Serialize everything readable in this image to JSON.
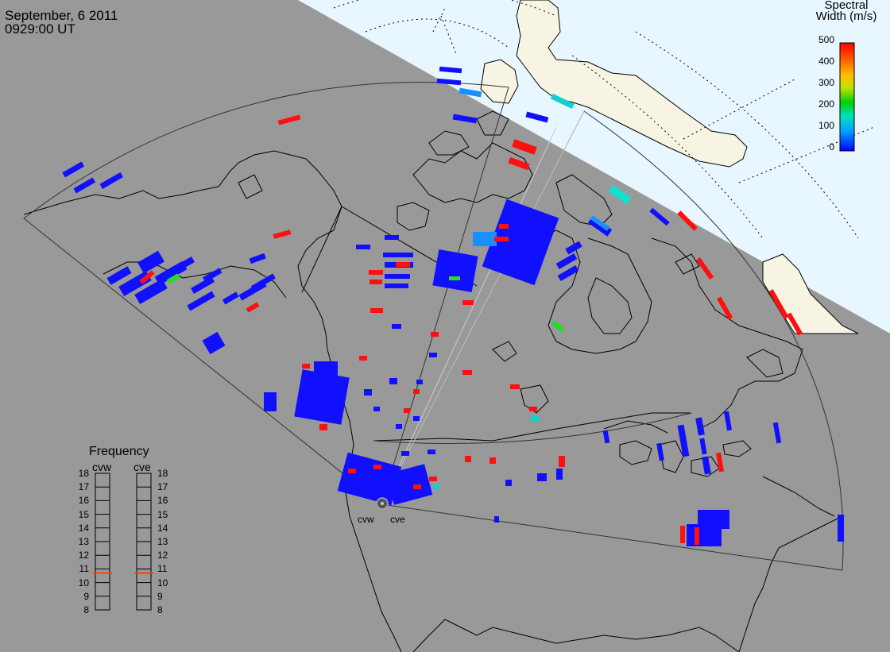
{
  "header": {
    "date": "September, 6 2011",
    "time": "0929:00 UT"
  },
  "colorbar": {
    "title_line1": "Spectral",
    "title_line2": "Width (m/s)",
    "ticks": [
      "500",
      "400",
      "300",
      "200",
      "100",
      "0"
    ],
    "range": [
      0,
      500
    ],
    "colors": [
      "#0000ff",
      "#00a0ff",
      "#00e0c0",
      "#00d000",
      "#c0e000",
      "#ffc000",
      "#ff6000",
      "#ff0000"
    ]
  },
  "colors": {
    "night_background": "#999999",
    "day_ocean": "#e8f6ff",
    "day_land": "#f7f4e4",
    "coastline": "#000000",
    "fov_outline": "#333333",
    "frequency_marker": "#ff4000"
  },
  "radars": {
    "west_label": "cvw",
    "east_label": "cve"
  },
  "frequency_panel": {
    "title": "Frequency",
    "left_label": "cvw",
    "right_label": "cve",
    "ticks": [
      "18",
      "17",
      "16",
      "15",
      "14",
      "13",
      "12",
      "11",
      "10",
      "9",
      "8"
    ],
    "range_mhz": [
      8,
      18
    ],
    "cvw_mhz": 10.7,
    "cve_mhz": 10.7
  }
}
